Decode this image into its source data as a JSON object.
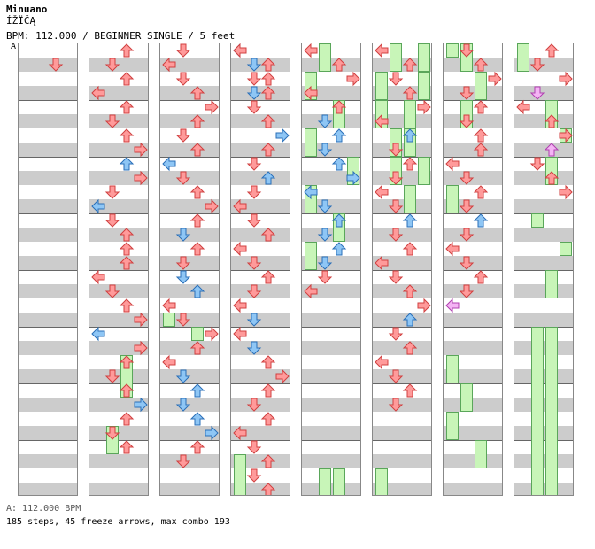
{
  "header": {
    "title": "Minuano",
    "subtitle": "ÍŽÏČĄ",
    "bpm_line": "BPM: 112.000 / BEGINNER SINGLE / 5 feet",
    "marker": "A"
  },
  "footer": {
    "bpm_info": "A: 112.000 BPM",
    "stats": "185 steps, 45 freeze arrows, max combo 193"
  },
  "colors": {
    "red_arrow": "#ff9a9a",
    "blue_arrow": "#8ec6f5",
    "pink_arrow": "#f4b4f4",
    "freeze_body": "#c8f5b8",
    "band": "#cccccc"
  },
  "columns": [
    {
      "arrows": [
        [
          5,
          "left",
          "red"
        ],
        [
          2,
          "down",
          "red"
        ]
      ],
      "freezes": []
    },
    {
      "arrows": [
        [
          2,
          "up",
          "red"
        ],
        [
          1,
          "down",
          "red"
        ],
        [
          2,
          "up",
          "red"
        ],
        [
          0,
          "left",
          "red"
        ],
        [
          2,
          "up",
          "red"
        ],
        [
          1,
          "down",
          "red"
        ],
        [
          2,
          "up",
          "red"
        ],
        [
          3,
          "right",
          "red"
        ],
        [
          2,
          "up",
          "blue"
        ],
        [
          3,
          "right",
          "red"
        ],
        [
          1,
          "down",
          "red"
        ],
        [
          0,
          "left",
          "blue"
        ],
        [
          1,
          "down",
          "red"
        ],
        [
          2,
          "up",
          "red"
        ],
        [
          2,
          "up",
          "red"
        ],
        [
          2,
          "up",
          "red"
        ],
        [
          0,
          "left",
          "red"
        ],
        [
          1,
          "down",
          "red"
        ],
        [
          2,
          "up",
          "red"
        ],
        [
          3,
          "right",
          "red"
        ],
        [
          0,
          "left",
          "blue"
        ],
        [
          3,
          "right",
          "red"
        ],
        [
          2,
          "up",
          "red"
        ],
        [
          1,
          "down",
          "red"
        ],
        [
          2,
          "up",
          "red"
        ],
        [
          3,
          "right",
          "blue"
        ],
        [
          2,
          "up",
          "red"
        ],
        [
          1,
          "down",
          "red"
        ],
        [
          2,
          "up",
          "red"
        ]
      ],
      "freezes": [
        [
          2,
          22,
          25,
          "up"
        ],
        [
          1,
          27,
          29,
          "down"
        ]
      ]
    },
    {
      "arrows": [
        [
          1,
          "down",
          "red"
        ],
        [
          0,
          "left",
          "red"
        ],
        [
          1,
          "down",
          "red"
        ],
        [
          2,
          "up",
          "red"
        ],
        [
          3,
          "right",
          "red"
        ],
        [
          2,
          "up",
          "red"
        ],
        [
          1,
          "down",
          "red"
        ],
        [
          2,
          "up",
          "red"
        ],
        [
          0,
          "left",
          "blue"
        ],
        [
          1,
          "down",
          "red"
        ],
        [
          2,
          "up",
          "red"
        ],
        [
          3,
          "right",
          "red"
        ],
        [
          2,
          "up",
          "red"
        ],
        [
          1,
          "down",
          "blue"
        ],
        [
          2,
          "up",
          "red"
        ],
        [
          1,
          "down",
          "red"
        ],
        [
          1,
          "down",
          "blue"
        ],
        [
          2,
          "up",
          "blue"
        ],
        [
          0,
          "left",
          "red"
        ],
        [
          1,
          "down",
          "red"
        ],
        [
          3,
          "right",
          "red"
        ],
        [
          2,
          "up",
          "red"
        ],
        [
          0,
          "left",
          "red"
        ],
        [
          1,
          "down",
          "blue"
        ],
        [
          2,
          "up",
          "blue"
        ],
        [
          1,
          "down",
          "blue"
        ],
        [
          2,
          "up",
          "blue"
        ],
        [
          3,
          "right",
          "blue"
        ],
        [
          2,
          "up",
          "red"
        ],
        [
          1,
          "down",
          "red"
        ]
      ],
      "freezes": [
        [
          0,
          19,
          20,
          "down"
        ],
        [
          2,
          20,
          21,
          "up"
        ]
      ]
    },
    {
      "arrows": [
        [
          0,
          "left",
          "blue"
        ],
        [
          2,
          "up",
          "red"
        ],
        [
          1,
          "down",
          "red"
        ],
        [
          2,
          "up",
          "red"
        ],
        [
          1,
          "down",
          "red"
        ],
        [
          2,
          "up",
          "red"
        ],
        [
          3,
          "right",
          "blue"
        ],
        [
          2,
          "up",
          "red"
        ],
        [
          1,
          "down",
          "red"
        ],
        [
          2,
          "up",
          "blue"
        ],
        [
          1,
          "down",
          "red"
        ],
        [
          0,
          "left",
          "red"
        ],
        [
          1,
          "down",
          "red"
        ],
        [
          2,
          "up",
          "red"
        ],
        [
          0,
          "left",
          "red"
        ],
        [
          1,
          "down",
          "red"
        ],
        [
          2,
          "up",
          "red"
        ],
        [
          1,
          "down",
          "red"
        ],
        [
          0,
          "left",
          "red"
        ],
        [
          1,
          "down",
          "blue"
        ],
        [
          0,
          "left",
          "red"
        ],
        [
          1,
          "down",
          "blue"
        ],
        [
          2,
          "up",
          "red"
        ],
        [
          3,
          "right",
          "red"
        ],
        [
          2,
          "up",
          "red"
        ],
        [
          1,
          "down",
          "red"
        ],
        [
          2,
          "up",
          "red"
        ],
        [
          0,
          "left",
          "red"
        ],
        [
          1,
          "down",
          "red"
        ],
        [
          2,
          "up",
          "red"
        ],
        [
          1,
          "down",
          "red"
        ],
        [
          2,
          "up",
          "red"
        ],
        [
          0,
          "left",
          "red"
        ],
        [
          1,
          "down",
          "blue"
        ],
        [
          2,
          "up",
          "red"
        ],
        [
          1,
          "down",
          "blue"
        ]
      ],
      "freezes": [
        [
          0,
          29,
          32,
          "down"
        ]
      ]
    },
    {
      "arrows": [
        [
          0,
          "left",
          "red"
        ],
        [
          2,
          "up",
          "red"
        ],
        [
          3,
          "right",
          "red"
        ],
        [
          0,
          "left",
          "red"
        ],
        [
          2,
          "up",
          "red"
        ],
        [
          1,
          "down",
          "blue"
        ],
        [
          2,
          "up",
          "blue"
        ],
        [
          1,
          "down",
          "blue"
        ],
        [
          2,
          "up",
          "blue"
        ],
        [
          3,
          "right",
          "blue"
        ],
        [
          0,
          "left",
          "blue"
        ],
        [
          1,
          "down",
          "blue"
        ],
        [
          2,
          "up",
          "blue"
        ],
        [
          1,
          "down",
          "blue"
        ],
        [
          2,
          "up",
          "blue"
        ],
        [
          1,
          "down",
          "blue"
        ],
        [
          1,
          "down",
          "red"
        ],
        [
          0,
          "left",
          "red"
        ]
      ],
      "freezes": [
        [
          1,
          0,
          2,
          "down"
        ],
        [
          0,
          2,
          4,
          "up"
        ],
        [
          2,
          4,
          6,
          "up"
        ],
        [
          0,
          6,
          8,
          "left"
        ],
        [
          3,
          8,
          10,
          "right"
        ],
        [
          0,
          10,
          12,
          "up"
        ],
        [
          2,
          12,
          14,
          "up"
        ],
        [
          0,
          14,
          16,
          "up"
        ],
        [
          1,
          30,
          32,
          "down"
        ],
        [
          2,
          30,
          32,
          "up"
        ]
      ]
    },
    {
      "arrows": [
        [
          0,
          "left",
          "red"
        ],
        [
          2,
          "up",
          "red"
        ],
        [
          1,
          "down",
          "red"
        ],
        [
          2,
          "up",
          "red"
        ],
        [
          3,
          "right",
          "red"
        ],
        [
          0,
          "left",
          "red"
        ],
        [
          2,
          "up",
          "blue"
        ],
        [
          1,
          "down",
          "red"
        ],
        [
          2,
          "up",
          "red"
        ],
        [
          1,
          "down",
          "red"
        ],
        [
          0,
          "left",
          "red"
        ],
        [
          1,
          "down",
          "red"
        ],
        [
          2,
          "up",
          "blue"
        ],
        [
          1,
          "down",
          "red"
        ],
        [
          2,
          "up",
          "red"
        ],
        [
          0,
          "left",
          "red"
        ],
        [
          1,
          "down",
          "red"
        ],
        [
          2,
          "up",
          "red"
        ],
        [
          3,
          "right",
          "red"
        ],
        [
          2,
          "up",
          "blue"
        ],
        [
          1,
          "down",
          "red"
        ],
        [
          2,
          "up",
          "red"
        ],
        [
          0,
          "left",
          "red"
        ],
        [
          1,
          "down",
          "red"
        ],
        [
          2,
          "up",
          "red"
        ],
        [
          1,
          "down",
          "red"
        ]
      ],
      "freezes": [
        [
          1,
          0,
          2,
          "down"
        ],
        [
          3,
          0,
          2,
          "down"
        ],
        [
          0,
          2,
          4,
          "left"
        ],
        [
          3,
          2,
          4,
          "up"
        ],
        [
          0,
          4,
          6,
          "left"
        ],
        [
          2,
          4,
          6,
          "up"
        ],
        [
          1,
          6,
          8,
          "down"
        ],
        [
          2,
          6,
          8,
          "down"
        ],
        [
          1,
          8,
          10,
          "down"
        ],
        [
          3,
          8,
          10,
          "right"
        ],
        [
          2,
          10,
          12,
          "up"
        ],
        [
          0,
          30,
          32,
          "up"
        ]
      ]
    },
    {
      "arrows": [
        [
          1,
          "down",
          "red"
        ],
        [
          2,
          "up",
          "red"
        ],
        [
          3,
          "right",
          "red"
        ],
        [
          1,
          "down",
          "red"
        ],
        [
          2,
          "up",
          "red"
        ],
        [
          1,
          "down",
          "red"
        ],
        [
          2,
          "up",
          "red"
        ],
        [
          2,
          "up",
          "red"
        ],
        [
          0,
          "left",
          "red"
        ],
        [
          1,
          "down",
          "red"
        ],
        [
          2,
          "up",
          "red"
        ],
        [
          1,
          "down",
          "red"
        ],
        [
          2,
          "up",
          "blue"
        ],
        [
          1,
          "down",
          "red"
        ],
        [
          0,
          "left",
          "red"
        ],
        [
          1,
          "down",
          "red"
        ],
        [
          2,
          "up",
          "red"
        ],
        [
          1,
          "down",
          "red"
        ],
        [
          0,
          "left",
          "pink"
        ]
      ],
      "freezes": [
        [
          0,
          0,
          1,
          "down"
        ],
        [
          1,
          0,
          2,
          "down"
        ],
        [
          2,
          2,
          4,
          "up"
        ],
        [
          1,
          4,
          6,
          "down"
        ],
        [
          0,
          10,
          12,
          "left"
        ],
        [
          0,
          22,
          24,
          "down"
        ],
        [
          1,
          24,
          26,
          "down"
        ],
        [
          0,
          26,
          28,
          "left"
        ],
        [
          2,
          28,
          30,
          "up"
        ]
      ]
    },
    {
      "arrows": [
        [
          2,
          "up",
          "red"
        ],
        [
          1,
          "down",
          "red"
        ],
        [
          3,
          "right",
          "red"
        ],
        [
          1,
          "down",
          "pink"
        ],
        [
          0,
          "left",
          "red"
        ],
        [
          2,
          "up",
          "red"
        ],
        [
          3,
          "right",
          "red"
        ],
        [
          2,
          "up",
          "pink"
        ],
        [
          1,
          "down",
          "red"
        ],
        [
          2,
          "up",
          "red"
        ],
        [
          3,
          "right",
          "red"
        ]
      ],
      "freezes": [
        [
          0,
          0,
          2,
          "down"
        ],
        [
          2,
          4,
          6,
          "up"
        ],
        [
          3,
          6,
          7,
          "right"
        ],
        [
          2,
          8,
          10,
          "up"
        ],
        [
          1,
          12,
          13,
          "down"
        ],
        [
          3,
          14,
          15,
          "right"
        ],
        [
          2,
          16,
          18,
          "up"
        ],
        [
          1,
          20,
          32,
          "down"
        ],
        [
          2,
          20,
          32,
          "up"
        ]
      ]
    }
  ]
}
